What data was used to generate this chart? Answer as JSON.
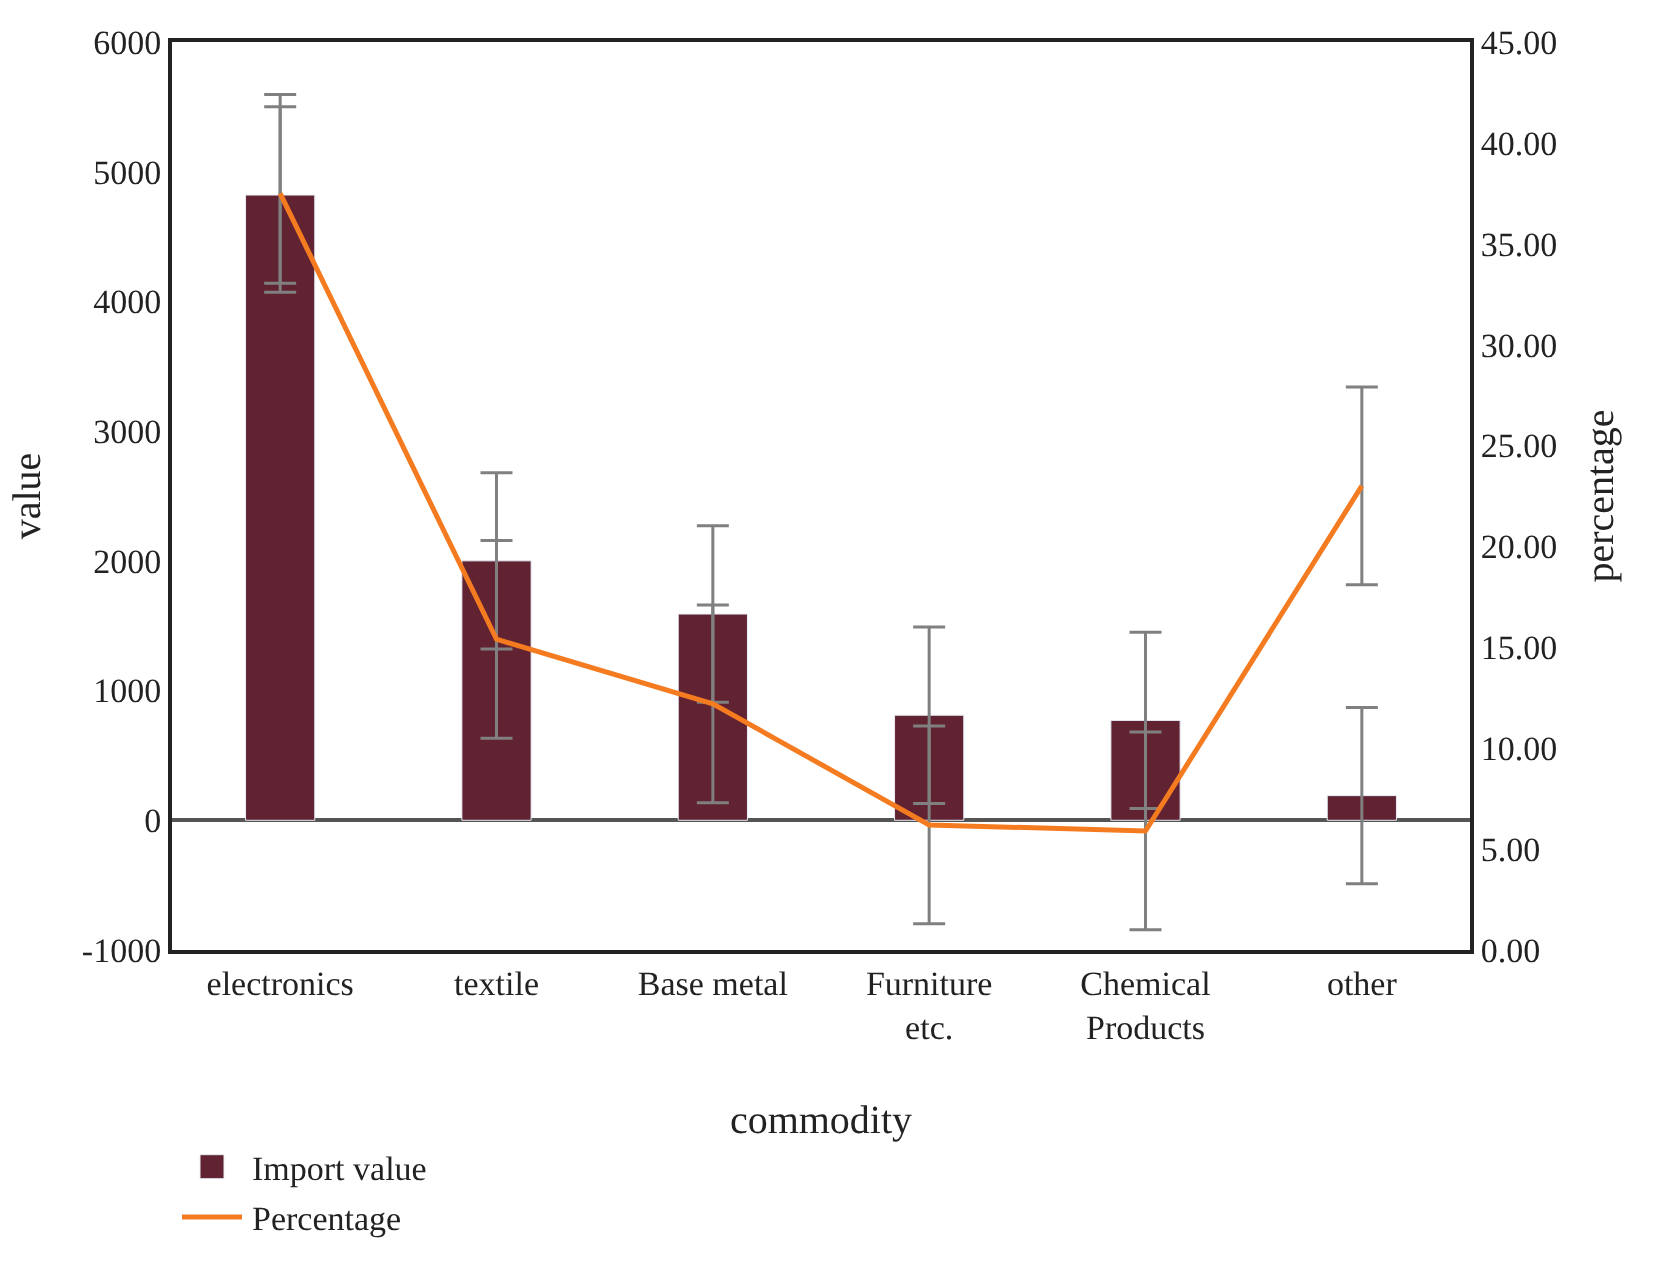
{
  "chart_data": {
    "type": "bar",
    "xlabel": "commodity",
    "ylabel": "value",
    "y2label": "percentage",
    "categories": [
      "electronics",
      "textile",
      "Base metal",
      "Furniture etc.",
      "Chemical Products",
      "other"
    ],
    "series": [
      {
        "name": "Import value",
        "color": "#612231",
        "values": [
          4820,
          2000,
          1590,
          810,
          770,
          190
        ],
        "errors": [
          680,
          680,
          680,
          680,
          680,
          680
        ]
      },
      {
        "name": "Percentage",
        "type": "line",
        "axis": "y2",
        "color": "#f47b20",
        "values": [
          37.5,
          15.4,
          12.2,
          6.2,
          5.9,
          23.0
        ],
        "errors": [
          4.9,
          4.9,
          4.9,
          4.9,
          4.9,
          4.9
        ]
      }
    ],
    "ylim": [
      -1000,
      6000
    ],
    "yticks": [
      -1000,
      0,
      1000,
      2000,
      3000,
      4000,
      5000,
      6000
    ],
    "y2lim": [
      0,
      45
    ],
    "y2ticks": [
      {
        "value": 0,
        "label": "0.00"
      },
      {
        "value": 5,
        "label": "5.00"
      },
      {
        "value": 10,
        "label": "10.00"
      },
      {
        "value": 15,
        "label": "15.00"
      },
      {
        "value": 20,
        "label": "20.00"
      },
      {
        "value": 25,
        "label": "25.00"
      },
      {
        "value": 30,
        "label": "30.00"
      },
      {
        "value": 35,
        "label": "35.00"
      },
      {
        "value": 40,
        "label": "40.00"
      },
      {
        "value": 45,
        "label": "45.00"
      }
    ],
    "legend": "bottom left",
    "marker": "none",
    "line_style": "solid"
  }
}
